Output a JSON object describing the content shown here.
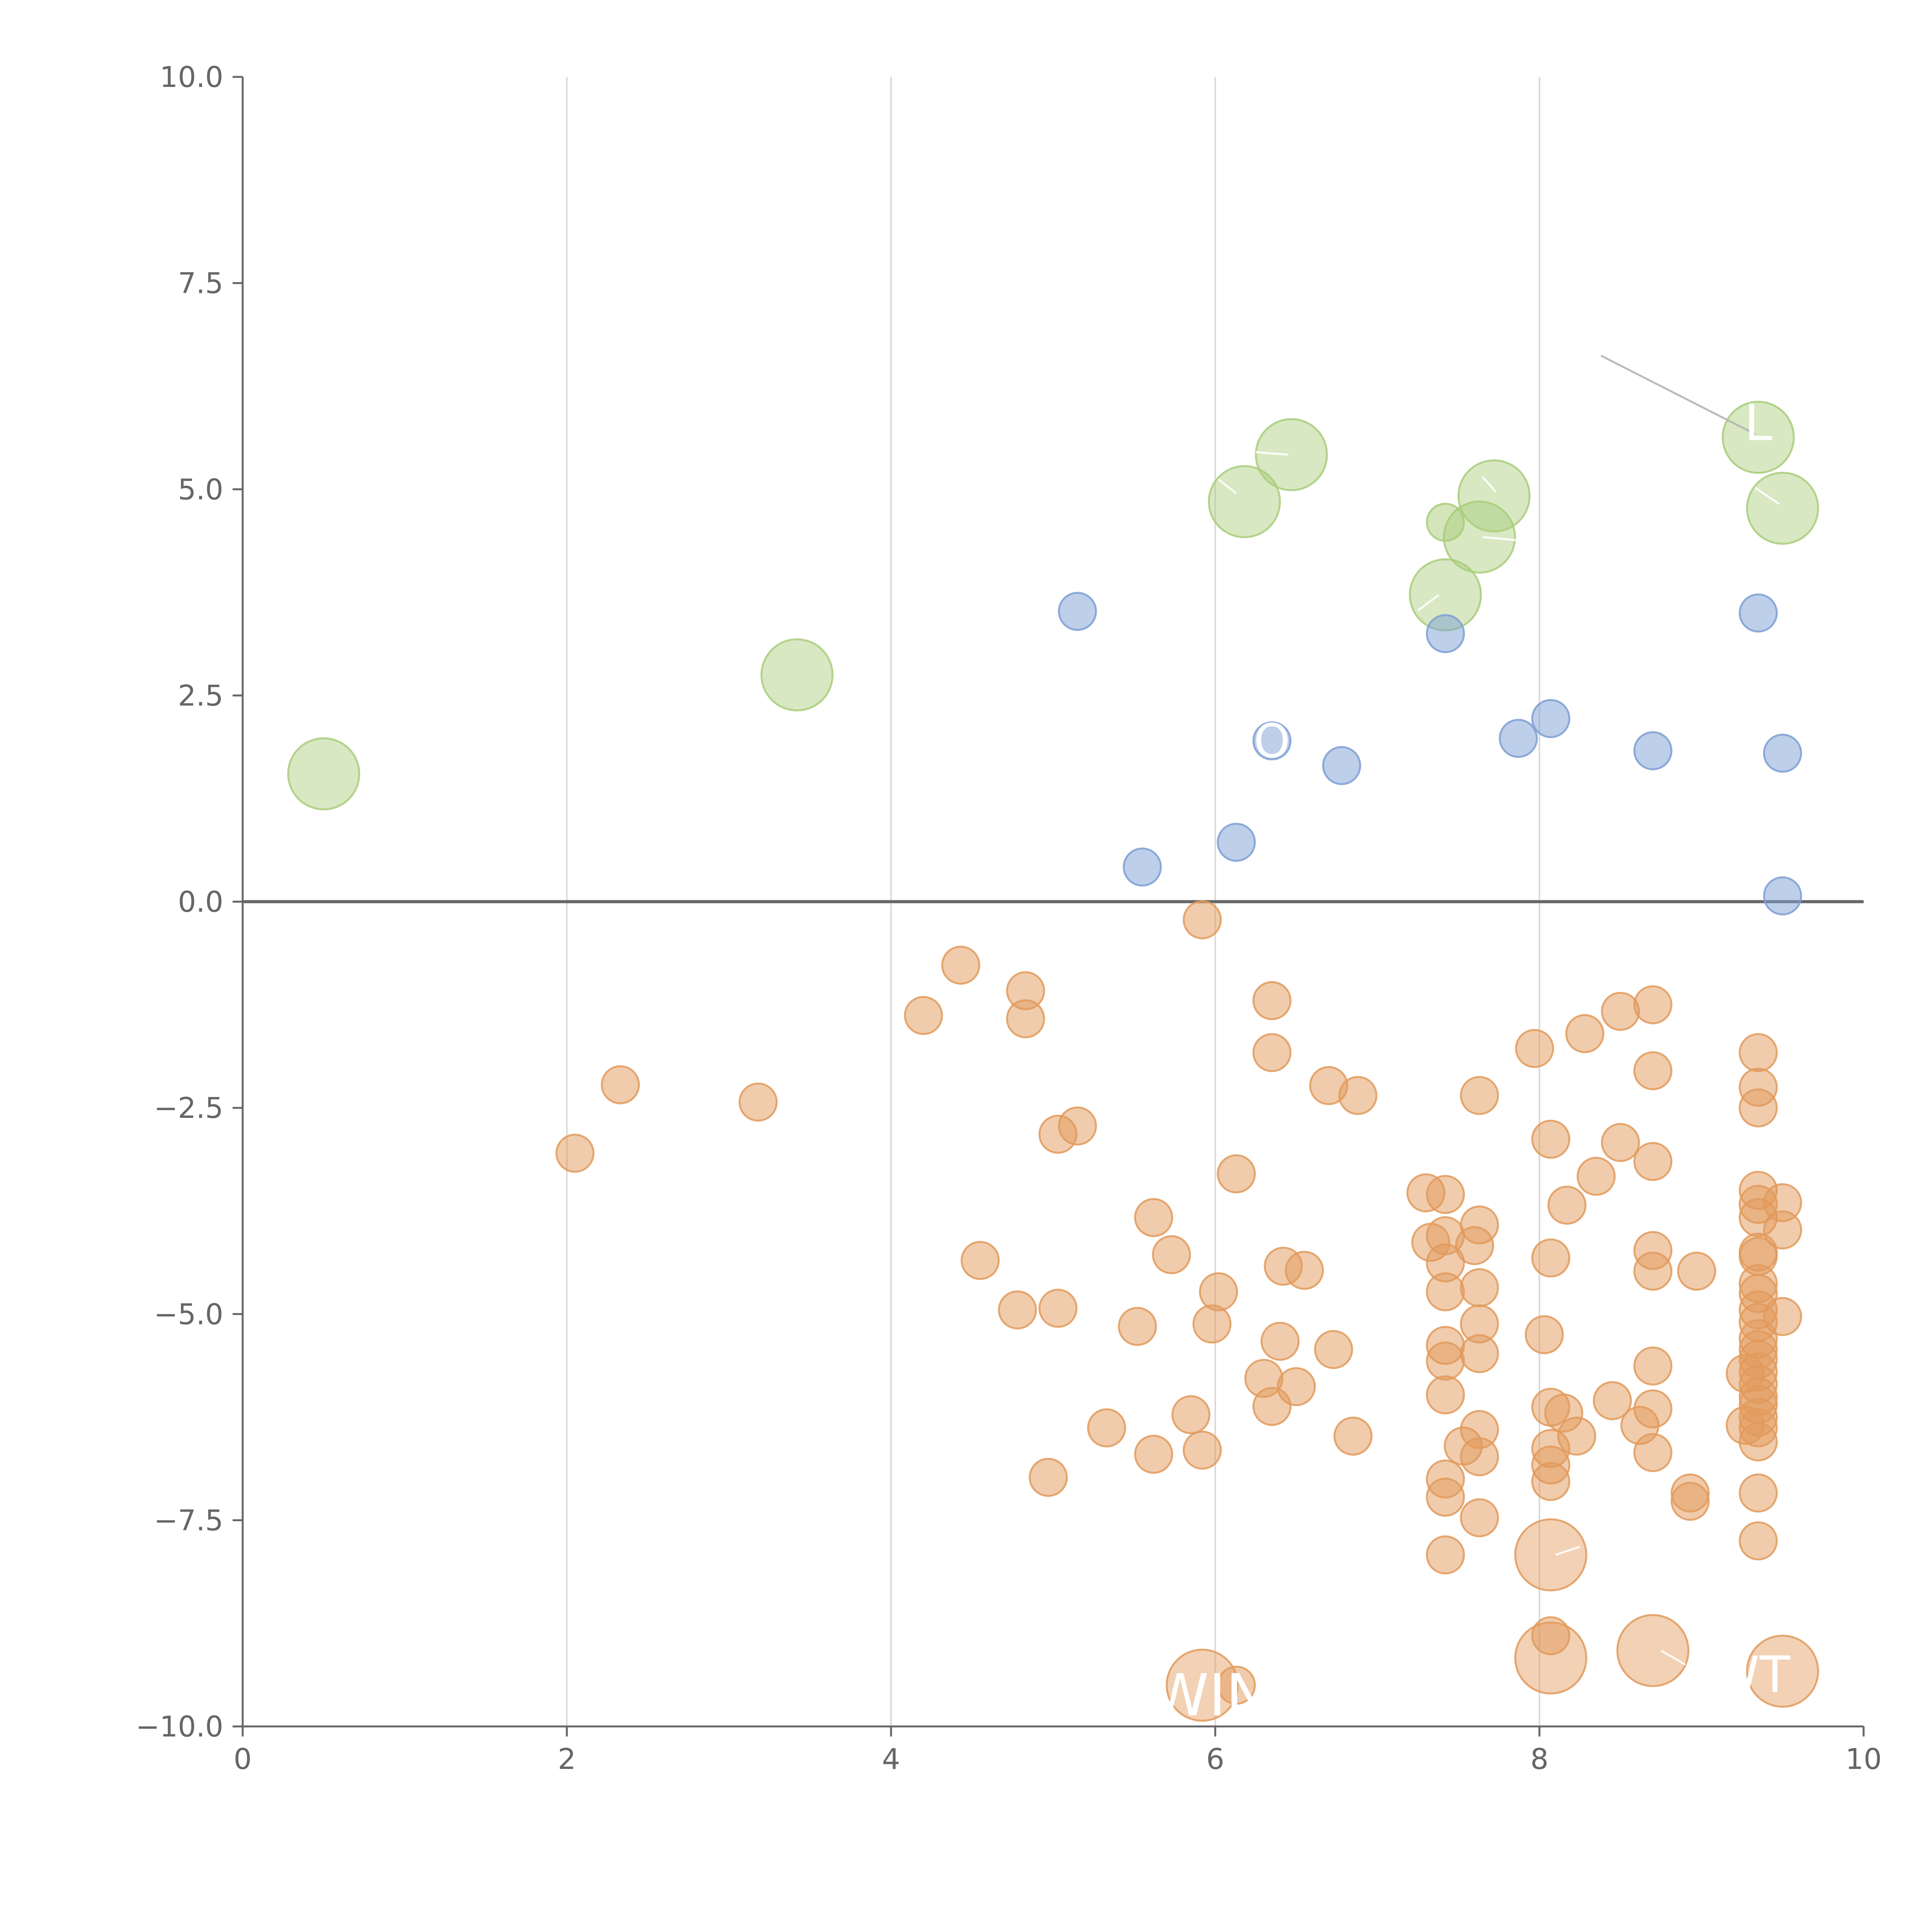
{
  "chart_data": {
    "type": "scatter",
    "title": "",
    "xlabel": "",
    "ylabel": "",
    "xlim": [
      0,
      10
    ],
    "ylim": [
      -10,
      10
    ],
    "x_ticks": [
      "0",
      "2",
      "4",
      "6",
      "8",
      "10"
    ],
    "y_ticks": [
      "10.0",
      "7.5",
      "5.0",
      "2.5",
      "0.0",
      "−2.5",
      "−5.0",
      "−7.5",
      "−10.0"
    ],
    "grid": "vertical",
    "zero_line": true,
    "colors": {
      "green": "#a9cc7a",
      "blue": "#7d9fd4",
      "orange": "#e29a5c",
      "axis": "#666666",
      "grid": "#d9d9d9"
    },
    "series": [
      {
        "color": "green",
        "points": [
          {
            "x": 0.5,
            "y": 1.55,
            "size": "large"
          },
          {
            "x": 3.42,
            "y": 2.75,
            "size": "large"
          },
          {
            "x": 6.18,
            "y": 4.85,
            "size": "large"
          },
          {
            "x": 6.47,
            "y": 5.42,
            "size": "large"
          },
          {
            "x": 7.42,
            "y": 4.6,
            "size": "small"
          },
          {
            "x": 7.42,
            "y": 3.72,
            "size": "large"
          },
          {
            "x": 7.63,
            "y": 4.42,
            "size": "large"
          },
          {
            "x": 7.72,
            "y": 4.92,
            "size": "large"
          },
          {
            "x": 9.35,
            "y": 5.63,
            "size": "large"
          },
          {
            "x": 9.5,
            "y": 4.77,
            "size": "large"
          }
        ]
      },
      {
        "color": "blue",
        "points": [
          {
            "x": 5.15,
            "y": 3.52
          },
          {
            "x": 5.55,
            "y": 0.42
          },
          {
            "x": 6.13,
            "y": 0.72
          },
          {
            "x": 6.35,
            "y": 1.95
          },
          {
            "x": 6.78,
            "y": 1.65
          },
          {
            "x": 7.42,
            "y": 3.25
          },
          {
            "x": 7.87,
            "y": 1.98
          },
          {
            "x": 8.07,
            "y": 2.22
          },
          {
            "x": 8.7,
            "y": 1.83
          },
          {
            "x": 9.35,
            "y": 3.5
          },
          {
            "x": 9.5,
            "y": 1.8
          },
          {
            "x": 9.5,
            "y": 0.07
          }
        ]
      },
      {
        "color": "orange",
        "points": [
          {
            "x": 2.05,
            "y": -3.05
          },
          {
            "x": 2.33,
            "y": -2.22
          },
          {
            "x": 3.18,
            "y": -2.43
          },
          {
            "x": 4.2,
            "y": -1.38
          },
          {
            "x": 4.43,
            "y": -0.77
          },
          {
            "x": 4.55,
            "y": -4.35
          },
          {
            "x": 4.78,
            "y": -4.95
          },
          {
            "x": 4.83,
            "y": -1.08
          },
          {
            "x": 4.83,
            "y": -1.42
          },
          {
            "x": 4.97,
            "y": -6.98
          },
          {
            "x": 5.03,
            "y": -2.82
          },
          {
            "x": 5.03,
            "y": -4.93
          },
          {
            "x": 5.15,
            "y": -2.72
          },
          {
            "x": 5.33,
            "y": -6.38
          },
          {
            "x": 5.52,
            "y": -5.15
          },
          {
            "x": 5.62,
            "y": -3.83
          },
          {
            "x": 5.62,
            "y": -6.7
          },
          {
            "x": 5.73,
            "y": -4.28
          },
          {
            "x": 5.85,
            "y": -6.22
          },
          {
            "x": 5.92,
            "y": -6.65
          },
          {
            "x": 5.92,
            "y": -0.22
          },
          {
            "x": 5.98,
            "y": -5.12
          },
          {
            "x": 6.02,
            "y": -4.73
          },
          {
            "x": 6.13,
            "y": -3.3
          },
          {
            "x": 6.3,
            "y": -5.78
          },
          {
            "x": 6.35,
            "y": -6.12
          },
          {
            "x": 6.35,
            "y": -1.2
          },
          {
            "x": 6.35,
            "y": -1.83
          },
          {
            "x": 6.4,
            "y": -5.33
          },
          {
            "x": 6.42,
            "y": -4.42
          },
          {
            "x": 6.5,
            "y": -5.88
          },
          {
            "x": 6.55,
            "y": -4.47
          },
          {
            "x": 6.7,
            "y": -2.23
          },
          {
            "x": 6.73,
            "y": -5.43
          },
          {
            "x": 6.85,
            "y": -6.48
          },
          {
            "x": 6.88,
            "y": -2.35
          },
          {
            "x": 7.3,
            "y": -3.53
          },
          {
            "x": 7.33,
            "y": -4.13
          },
          {
            "x": 7.42,
            "y": -3.55
          },
          {
            "x": 7.42,
            "y": -4.05
          },
          {
            "x": 7.42,
            "y": -4.38
          },
          {
            "x": 7.42,
            "y": -4.73
          },
          {
            "x": 7.42,
            "y": -5.38
          },
          {
            "x": 7.42,
            "y": -5.57
          },
          {
            "x": 7.42,
            "y": -5.98
          },
          {
            "x": 7.42,
            "y": -7.0
          },
          {
            "x": 7.42,
            "y": -7.22
          },
          {
            "x": 7.42,
            "y": -7.92
          },
          {
            "x": 7.53,
            "y": -6.6
          },
          {
            "x": 7.6,
            "y": -4.17
          },
          {
            "x": 7.63,
            "y": -2.35
          },
          {
            "x": 7.63,
            "y": -3.92
          },
          {
            "x": 7.63,
            "y": -4.68
          },
          {
            "x": 7.63,
            "y": -5.12
          },
          {
            "x": 7.63,
            "y": -5.48
          },
          {
            "x": 7.63,
            "y": -6.4
          },
          {
            "x": 7.63,
            "y": -6.73
          },
          {
            "x": 7.63,
            "y": -7.47
          },
          {
            "x": 7.97,
            "y": -1.78
          },
          {
            "x": 8.03,
            "y": -5.25
          },
          {
            "x": 8.07,
            "y": -2.88
          },
          {
            "x": 8.07,
            "y": -4.32
          },
          {
            "x": 8.07,
            "y": -6.13
          },
          {
            "x": 8.07,
            "y": -6.63
          },
          {
            "x": 8.07,
            "y": -6.83
          },
          {
            "x": 8.07,
            "y": -7.03
          },
          {
            "x": 8.07,
            "y": -8.9
          },
          {
            "x": 8.15,
            "y": -6.2
          },
          {
            "x": 8.17,
            "y": -3.68
          },
          {
            "x": 8.23,
            "y": -6.48
          },
          {
            "x": 8.28,
            "y": -1.6
          },
          {
            "x": 8.35,
            "y": -3.33
          },
          {
            "x": 8.45,
            "y": -6.05
          },
          {
            "x": 8.5,
            "y": -1.33
          },
          {
            "x": 8.5,
            "y": -2.92
          },
          {
            "x": 8.62,
            "y": -6.35
          },
          {
            "x": 8.7,
            "y": -1.25
          },
          {
            "x": 8.7,
            "y": -2.05
          },
          {
            "x": 8.7,
            "y": -3.15
          },
          {
            "x": 8.7,
            "y": -4.23
          },
          {
            "x": 8.7,
            "y": -4.48
          },
          {
            "x": 8.7,
            "y": -5.63
          },
          {
            "x": 8.7,
            "y": -6.15
          },
          {
            "x": 8.7,
            "y": -6.68
          },
          {
            "x": 8.93,
            "y": -7.17
          },
          {
            "x": 8.93,
            "y": -7.27
          },
          {
            "x": 8.97,
            "y": -4.48
          },
          {
            "x": 9.27,
            "y": -5.72
          },
          {
            "x": 9.27,
            "y": -6.35
          },
          {
            "x": 9.35,
            "y": -1.83
          },
          {
            "x": 9.35,
            "y": -2.25
          },
          {
            "x": 9.35,
            "y": -2.5
          },
          {
            "x": 9.35,
            "y": -3.5
          },
          {
            "x": 9.35,
            "y": -3.67
          },
          {
            "x": 9.35,
            "y": -3.83
          },
          {
            "x": 9.35,
            "y": -4.25
          },
          {
            "x": 9.35,
            "y": -4.3
          },
          {
            "x": 9.35,
            "y": -4.63
          },
          {
            "x": 9.35,
            "y": -4.75
          },
          {
            "x": 9.35,
            "y": -4.95
          },
          {
            "x": 9.35,
            "y": -5.1
          },
          {
            "x": 9.35,
            "y": -5.3
          },
          {
            "x": 9.35,
            "y": -5.43
          },
          {
            "x": 9.35,
            "y": -5.55
          },
          {
            "x": 9.35,
            "y": -5.7
          },
          {
            "x": 9.35,
            "y": -5.85
          },
          {
            "x": 9.35,
            "y": -6.0
          },
          {
            "x": 9.35,
            "y": -6.1
          },
          {
            "x": 9.35,
            "y": -6.25
          },
          {
            "x": 9.35,
            "y": -6.38
          },
          {
            "x": 9.35,
            "y": -6.55
          },
          {
            "x": 9.35,
            "y": -7.17
          },
          {
            "x": 9.35,
            "y": -7.75
          },
          {
            "x": 9.5,
            "y": -3.65
          },
          {
            "x": 9.5,
            "y": -3.98
          },
          {
            "x": 9.5,
            "y": -5.03
          },
          {
            "x": 6.13,
            "y": -9.5
          },
          {
            "x": 5.92,
            "y": -9.5,
            "size": "large"
          },
          {
            "x": 8.07,
            "y": -7.92,
            "size": "large"
          },
          {
            "x": 8.07,
            "y": -9.17,
            "size": "large"
          },
          {
            "x": 8.7,
            "y": -9.08,
            "size": "large"
          },
          {
            "x": 9.5,
            "y": -9.33,
            "size": "large"
          }
        ]
      }
    ],
    "annotations": [
      {
        "text": "WIN",
        "x": 5.92,
        "y": -9.5
      },
      {
        "text": "L",
        "x": 9.35,
        "y": 5.63
      },
      {
        "text": "O",
        "x": 6.35,
        "y": 1.95
      },
      {
        "text": "WT",
        "x": 9.5,
        "y": -9.33
      }
    ]
  }
}
